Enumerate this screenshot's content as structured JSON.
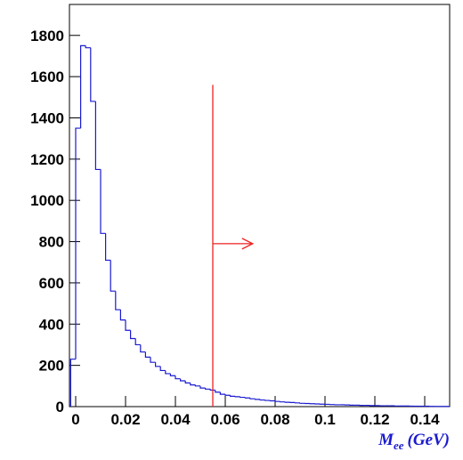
{
  "chart_data": {
    "type": "histogram",
    "x_label": {
      "main": "M",
      "subscript": "ee",
      "unit": "(GeV)"
    },
    "bins": [
      -0.002,
      0,
      0.002,
      0.004,
      0.006,
      0.008,
      0.01,
      0.012,
      0.014,
      0.016,
      0.018,
      0.02,
      0.022,
      0.024,
      0.026,
      0.028,
      0.03,
      0.032,
      0.034,
      0.036,
      0.038,
      0.04,
      0.042,
      0.044,
      0.046,
      0.048,
      0.05,
      0.052,
      0.054,
      0.056,
      0.058,
      0.06,
      0.062,
      0.064,
      0.066,
      0.068,
      0.07,
      0.072,
      0.074,
      0.076,
      0.078,
      0.08,
      0.082,
      0.084,
      0.086,
      0.088,
      0.09,
      0.092,
      0.094,
      0.096,
      0.098,
      0.1,
      0.102,
      0.104,
      0.106,
      0.108,
      0.11,
      0.112,
      0.114,
      0.116,
      0.118,
      0.12,
      0.122,
      0.124,
      0.126,
      0.128,
      0.13,
      0.132,
      0.134,
      0.136,
      0.138,
      0.14,
      0.142,
      0.144,
      0.146,
      0.148,
      0.15
    ],
    "values": [
      230,
      1350,
      1750,
      1740,
      1480,
      1150,
      840,
      710,
      560,
      470,
      420,
      370,
      330,
      300,
      265,
      240,
      215,
      195,
      175,
      160,
      150,
      135,
      125,
      115,
      105,
      100,
      90,
      85,
      80,
      70,
      60,
      55,
      50,
      48,
      45,
      42,
      38,
      35,
      32,
      30,
      28,
      25,
      23,
      21,
      20,
      18,
      16,
      15,
      14,
      13,
      12,
      11,
      10,
      9,
      9,
      8,
      7,
      7,
      6,
      6,
      5,
      5,
      4,
      4,
      4,
      3,
      3,
      3,
      2,
      2,
      2,
      2,
      1,
      1,
      1,
      1
    ],
    "color": "#1a1ad0",
    "xlim": [
      -0.0025,
      0.15
    ],
    "ylim": [
      0,
      1950
    ],
    "xticks": [
      0,
      0.02,
      0.04,
      0.06,
      0.08,
      0.1,
      0.12,
      0.14
    ],
    "yticks": [
      0,
      200,
      400,
      600,
      800,
      1000,
      1200,
      1400,
      1600,
      1800
    ],
    "cut": {
      "x": 0.055,
      "ymax": 1560,
      "arrow_y": 790,
      "arrow_x_end": 0.071,
      "color": "#ee2222"
    }
  }
}
